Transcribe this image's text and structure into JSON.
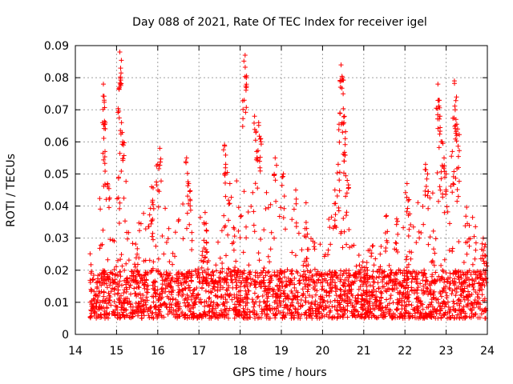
{
  "chart_data": {
    "type": "scatter",
    "title": "Day 088 of 2021, Rate Of TEC Index for receiver igel",
    "xlabel": "GPS time / hours",
    "ylabel": "ROTI / TECUs",
    "xlim": [
      14,
      24
    ],
    "ylim": [
      0,
      0.09
    ],
    "x_ticks": [
      "14",
      "15",
      "16",
      "17",
      "18",
      "19",
      "20",
      "21",
      "22",
      "23",
      "24"
    ],
    "y_ticks": [
      "0",
      "0.01",
      "0.02",
      "0.03",
      "0.04",
      "0.05",
      "0.06",
      "0.07",
      "0.08",
      "0.09"
    ],
    "grid": true,
    "marker": "+",
    "series_color": "#ff0000",
    "x_range_of_data": [
      14.35,
      23.98
    ],
    "typical_band": [
      0.005,
      0.02
    ],
    "peaks": [
      {
        "x": 14.68,
        "y": 0.078
      },
      {
        "x": 14.7,
        "y": 0.073
      },
      {
        "x": 14.66,
        "y": 0.066
      },
      {
        "x": 14.72,
        "y": 0.057
      },
      {
        "x": 14.78,
        "y": 0.047
      },
      {
        "x": 15.08,
        "y": 0.088
      },
      {
        "x": 15.1,
        "y": 0.083
      },
      {
        "x": 15.07,
        "y": 0.077
      },
      {
        "x": 15.12,
        "y": 0.066
      },
      {
        "x": 15.15,
        "y": 0.06
      },
      {
        "x": 15.05,
        "y": 0.049
      },
      {
        "x": 16.05,
        "y": 0.058
      },
      {
        "x": 16.0,
        "y": 0.053
      },
      {
        "x": 15.85,
        "y": 0.046
      },
      {
        "x": 16.7,
        "y": 0.055
      },
      {
        "x": 16.75,
        "y": 0.047
      },
      {
        "x": 17.15,
        "y": 0.038
      },
      {
        "x": 17.62,
        "y": 0.059
      },
      {
        "x": 17.65,
        "y": 0.053
      },
      {
        "x": 17.75,
        "y": 0.047
      },
      {
        "x": 18.12,
        "y": 0.087
      },
      {
        "x": 18.15,
        "y": 0.08
      },
      {
        "x": 18.1,
        "y": 0.073
      },
      {
        "x": 18.35,
        "y": 0.068
      },
      {
        "x": 18.45,
        "y": 0.066
      },
      {
        "x": 18.5,
        "y": 0.061
      },
      {
        "x": 18.4,
        "y": 0.057
      },
      {
        "x": 18.85,
        "y": 0.055
      },
      {
        "x": 19.05,
        "y": 0.05
      },
      {
        "x": 19.35,
        "y": 0.045
      },
      {
        "x": 19.6,
        "y": 0.041
      },
      {
        "x": 20.45,
        "y": 0.084
      },
      {
        "x": 20.48,
        "y": 0.08
      },
      {
        "x": 20.5,
        "y": 0.075
      },
      {
        "x": 20.42,
        "y": 0.069
      },
      {
        "x": 20.52,
        "y": 0.066
      },
      {
        "x": 20.55,
        "y": 0.061
      },
      {
        "x": 20.38,
        "y": 0.053
      },
      {
        "x": 20.6,
        "y": 0.048
      },
      {
        "x": 20.3,
        "y": 0.045
      },
      {
        "x": 21.55,
        "y": 0.037
      },
      {
        "x": 21.8,
        "y": 0.036
      },
      {
        "x": 22.05,
        "y": 0.047
      },
      {
        "x": 22.1,
        "y": 0.042
      },
      {
        "x": 22.5,
        "y": 0.053
      },
      {
        "x": 22.55,
        "y": 0.05
      },
      {
        "x": 22.8,
        "y": 0.078
      },
      {
        "x": 22.82,
        "y": 0.073
      },
      {
        "x": 22.85,
        "y": 0.068
      },
      {
        "x": 22.9,
        "y": 0.06
      },
      {
        "x": 22.95,
        "y": 0.055
      },
      {
        "x": 23.0,
        "y": 0.05
      },
      {
        "x": 23.2,
        "y": 0.079
      },
      {
        "x": 23.25,
        "y": 0.074
      },
      {
        "x": 23.22,
        "y": 0.07
      },
      {
        "x": 23.28,
        "y": 0.064
      },
      {
        "x": 23.15,
        "y": 0.057
      },
      {
        "x": 23.3,
        "y": 0.052
      },
      {
        "x": 23.9,
        "y": 0.03
      },
      {
        "x": 23.95,
        "y": 0.028
      }
    ],
    "activity_profile": [
      {
        "x": 14.4,
        "level": 0.035
      },
      {
        "x": 14.7,
        "level": 0.06
      },
      {
        "x": 15.1,
        "level": 0.065
      },
      {
        "x": 15.5,
        "level": 0.035
      },
      {
        "x": 16.0,
        "level": 0.045
      },
      {
        "x": 16.5,
        "level": 0.04
      },
      {
        "x": 16.8,
        "level": 0.045
      },
      {
        "x": 17.3,
        "level": 0.03
      },
      {
        "x": 17.7,
        "level": 0.045
      },
      {
        "x": 18.1,
        "level": 0.055
      },
      {
        "x": 18.5,
        "level": 0.055
      },
      {
        "x": 18.9,
        "level": 0.042
      },
      {
        "x": 19.5,
        "level": 0.035
      },
      {
        "x": 20.0,
        "level": 0.028
      },
      {
        "x": 20.5,
        "level": 0.055
      },
      {
        "x": 20.9,
        "level": 0.025
      },
      {
        "x": 21.5,
        "level": 0.03
      },
      {
        "x": 22.0,
        "level": 0.035
      },
      {
        "x": 22.5,
        "level": 0.045
      },
      {
        "x": 22.9,
        "level": 0.055
      },
      {
        "x": 23.3,
        "level": 0.05
      },
      {
        "x": 23.98,
        "level": 0.025
      }
    ]
  }
}
